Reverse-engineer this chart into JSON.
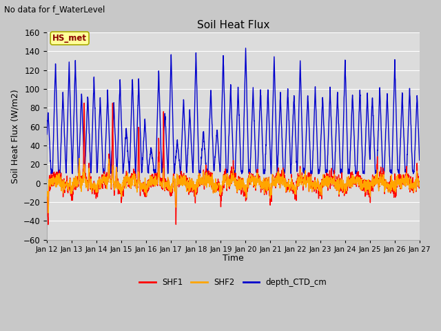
{
  "title": "Soil Heat Flux",
  "suptitle": "No data for f_WaterLevel",
  "ylabel": "Soil Heat Flux (W/m2)",
  "xlabel": "Time",
  "ylim": [
    -60,
    160
  ],
  "yticks": [
    -60,
    -40,
    -20,
    0,
    20,
    40,
    60,
    80,
    100,
    120,
    140,
    160
  ],
  "xtick_labels": [
    "Jan 12",
    "Jan 13",
    "Jan 14",
    "Jan 15",
    "Jan 16",
    "Jan 17",
    "Jan 18",
    "Jan 19",
    "Jan 20",
    "Jan 21",
    "Jan 22",
    "Jan 23",
    "Jan 24",
    "Jan 25",
    "Jan 26",
    "Jan 27"
  ],
  "colors": {
    "SHF1": "#ff0000",
    "SHF2": "#ffa500",
    "depth_CTD_cm": "#0000cc"
  },
  "annotation_text": "HS_met",
  "annotation_color": "#8b0000",
  "annotation_box_color": "#ffff99",
  "fig_bg_color": "#c8c8c8",
  "plot_bg_color": "#dcdcdc",
  "grid_color": "#ffffff"
}
